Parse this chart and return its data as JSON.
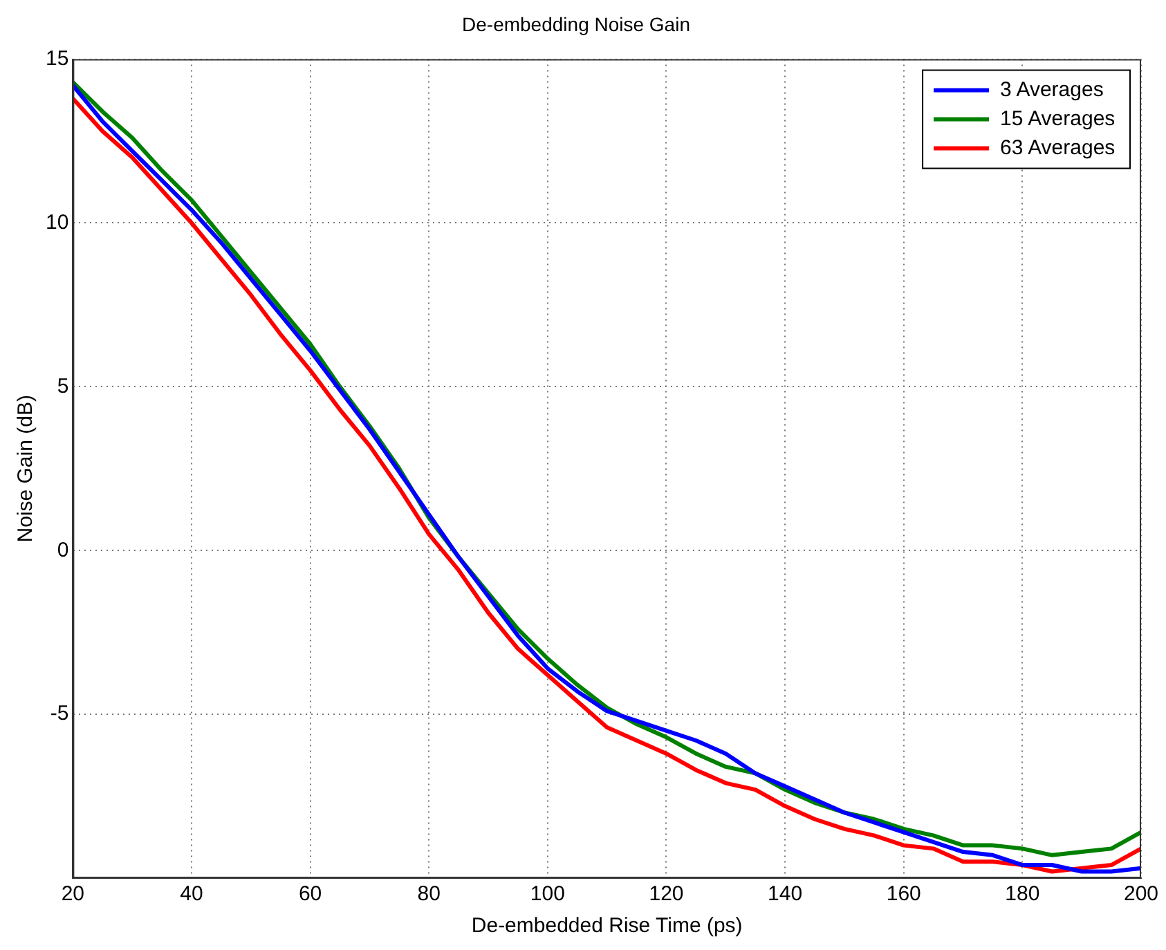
{
  "chart_data": {
    "type": "line",
    "title": "De-embedding Noise Gain",
    "xlabel": "De-embedded Rise Time (ps)",
    "ylabel": "Noise Gain (dB)",
    "x": [
      20,
      25,
      30,
      35,
      40,
      45,
      50,
      55,
      60,
      65,
      70,
      75,
      80,
      85,
      90,
      95,
      100,
      105,
      110,
      115,
      120,
      125,
      130,
      135,
      140,
      145,
      150,
      155,
      160,
      165,
      170,
      175,
      180,
      185,
      190,
      195,
      200
    ],
    "series": [
      {
        "name": "3 Averages",
        "color": "#0000ff",
        "values": [
          14.2,
          13.1,
          12.2,
          11.3,
          10.4,
          9.4,
          8.3,
          7.2,
          6.1,
          4.9,
          3.7,
          2.4,
          1.1,
          -0.2,
          -1.4,
          -2.6,
          -3.6,
          -4.3,
          -4.9,
          -5.2,
          -5.5,
          -5.8,
          -6.2,
          -6.8,
          -7.2,
          -7.6,
          -8.0,
          -8.3,
          -8.6,
          -8.9,
          -9.2,
          -9.3,
          -9.6,
          -9.6,
          -9.8,
          -9.8,
          -9.7
        ]
      },
      {
        "name": "15 Averages",
        "color": "#008000",
        "values": [
          14.3,
          13.4,
          12.6,
          11.6,
          10.7,
          9.6,
          8.5,
          7.4,
          6.3,
          5.0,
          3.8,
          2.5,
          1.0,
          -0.2,
          -1.3,
          -2.4,
          -3.3,
          -4.1,
          -4.8,
          -5.3,
          -5.7,
          -6.2,
          -6.6,
          -6.8,
          -7.3,
          -7.7,
          -8.0,
          -8.2,
          -8.5,
          -8.7,
          -9.0,
          -9.0,
          -9.1,
          -9.3,
          -9.2,
          -9.1,
          -8.6
        ]
      },
      {
        "name": "63 Averages",
        "color": "#ff0000",
        "values": [
          13.8,
          12.8,
          12.0,
          11.0,
          10.0,
          8.9,
          7.8,
          6.6,
          5.5,
          4.3,
          3.2,
          1.9,
          0.5,
          -0.6,
          -1.9,
          -3.0,
          -3.8,
          -4.6,
          -5.4,
          -5.8,
          -6.2,
          -6.7,
          -7.1,
          -7.3,
          -7.8,
          -8.2,
          -8.5,
          -8.7,
          -9.0,
          -9.1,
          -9.5,
          -9.5,
          -9.6,
          -9.8,
          -9.7,
          -9.6,
          -9.1
        ]
      }
    ],
    "xlim": [
      20,
      200
    ],
    "xticks": [
      20,
      40,
      60,
      80,
      100,
      120,
      140,
      160,
      180,
      200
    ],
    "ylim": [
      -10,
      15
    ],
    "yticks": [
      -5,
      0,
      5,
      10,
      15
    ],
    "grid": true,
    "legend": "top right",
    "marker": "none",
    "line_style": "solid"
  }
}
